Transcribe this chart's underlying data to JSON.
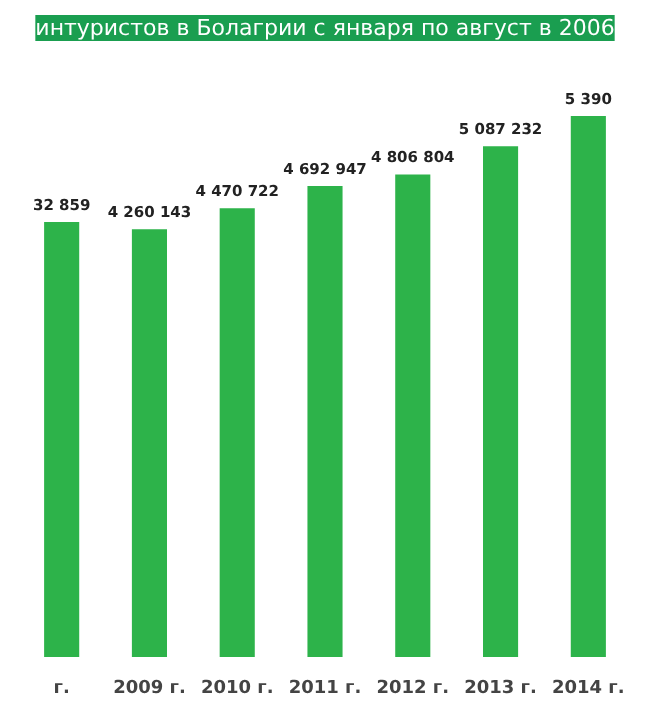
{
  "chart_data": {
    "type": "bar",
    "title": "интуристов в Болагрии с января по август в 2006",
    "categories": [
      "г.",
      "2009 г.",
      "2010 г.",
      "2011 г.",
      "2012 г.",
      "2013 г.",
      "2014 г."
    ],
    "values": [
      4332859,
      4260143,
      4470722,
      4692947,
      4806804,
      5087232,
      5390000
    ],
    "value_labels": [
      null,
      "4 260 143",
      "4 470 722",
      "4 692 947",
      "4 806 804",
      "5 087 232",
      null
    ],
    "annotations": [
      "32 859",
      "5 390"
    ],
    "color": "#2db34a"
  }
}
